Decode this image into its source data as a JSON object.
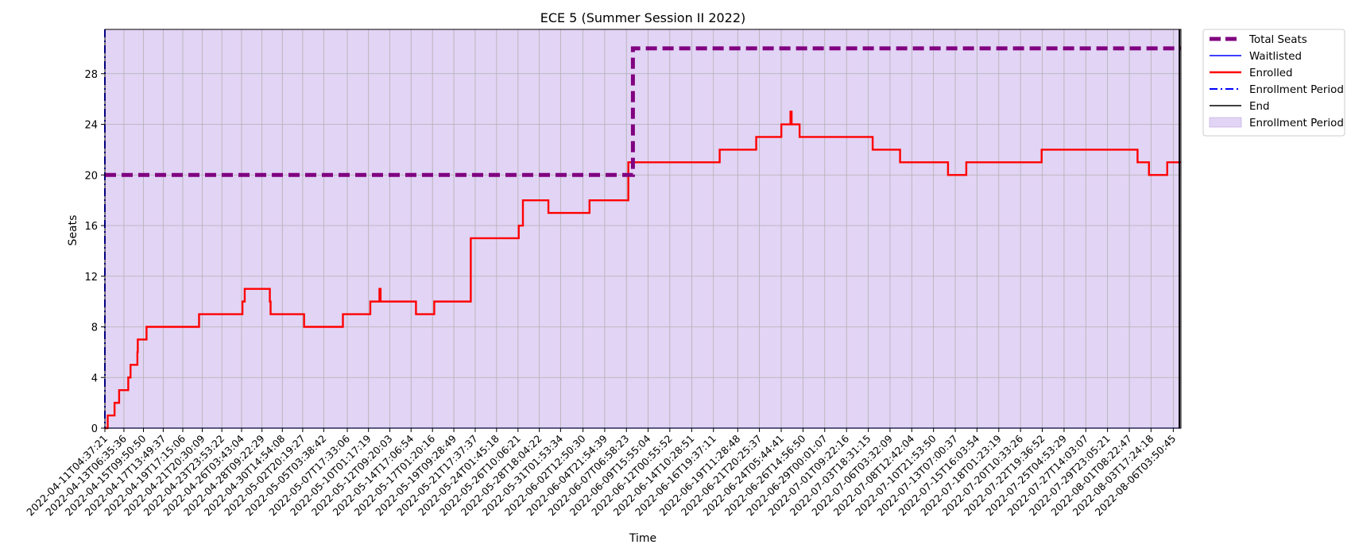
{
  "chart_data": {
    "type": "line",
    "title": "ECE 5 (Summer Session II 2022)",
    "xlabel": "Time",
    "ylabel": "Seats",
    "ylim": [
      0,
      31.5
    ],
    "yticks": [
      0,
      4,
      8,
      12,
      16,
      20,
      24,
      28
    ],
    "grid": true,
    "legend_position": "outside-top-right",
    "x_start": "2022-04-11T04:37:21",
    "x_end": "2022-08-07T00:00:00",
    "x_ticks": [
      "2022-04-11T04:37:21",
      "2022-04-13T06:35:36",
      "2022-04-15T09:50:50",
      "2022-04-17T13:49:37",
      "2022-04-19T17:15:06",
      "2022-04-21T20:30:09",
      "2022-04-23T23:53:22",
      "2022-04-26T03:43:04",
      "2022-04-28T09:22:29",
      "2022-04-30T14:54:08",
      "2022-05-02T20:19:27",
      "2022-05-05T03:38:42",
      "2022-05-07T17:33:06",
      "2022-05-10T01:17:19",
      "2022-05-12T09:20:03",
      "2022-05-14T17:06:54",
      "2022-05-17T01:20:16",
      "2022-05-19T09:28:49",
      "2022-05-21T17:37:37",
      "2022-05-24T01:45:18",
      "2022-05-26T10:06:21",
      "2022-05-28T18:04:22",
      "2022-05-31T01:53:34",
      "2022-06-02T12:50:30",
      "2022-06-04T21:54:39",
      "2022-06-07T06:58:23",
      "2022-06-09T15:55:04",
      "2022-06-12T00:55:52",
      "2022-06-14T10:28:51",
      "2022-06-16T19:37:11",
      "2022-06-19T11:28:48",
      "2022-06-21T20:25:37",
      "2022-06-24T05:44:41",
      "2022-06-26T14:56:50",
      "2022-06-29T00:01:07",
      "2022-07-01T09:22:16",
      "2022-07-03T18:31:15",
      "2022-07-06T03:32:09",
      "2022-07-08T12:42:04",
      "2022-07-10T21:53:50",
      "2022-07-13T07:00:37",
      "2022-07-15T16:03:54",
      "2022-07-18T01:23:19",
      "2022-07-20T10:33:26",
      "2022-07-22T19:36:52",
      "2022-07-25T04:53:29",
      "2022-07-27T14:03:07",
      "2022-07-29T23:05:21",
      "2022-08-01T08:22:47",
      "2022-08-03T17:24:18",
      "2022-08-06T03:50:45"
    ],
    "series": [
      {
        "name": "Total Seats",
        "color": "#800080",
        "style": "dashed-thick",
        "points": [
          [
            "2022-04-11T04:37:21",
            20
          ],
          [
            "2022-06-08T00:00:00",
            20
          ],
          [
            "2022-06-08T00:00:00",
            30
          ],
          [
            "2022-08-07T00:00:00",
            30
          ]
        ]
      },
      {
        "name": "Waitlisted",
        "color": "#0000ff",
        "style": "solid-thin",
        "points": [
          [
            "2022-04-11T04:37:21",
            0
          ],
          [
            "2022-08-07T00:00:00",
            0
          ]
        ]
      },
      {
        "name": "Enrolled",
        "color": "#ff0000",
        "style": "step",
        "points": [
          [
            "2022-04-11T04:37:21",
            0
          ],
          [
            "2022-04-11T12:00:00",
            0
          ],
          [
            "2022-04-11T12:00:00",
            1
          ],
          [
            "2022-04-12T06:00:00",
            1
          ],
          [
            "2022-04-12T06:00:00",
            2
          ],
          [
            "2022-04-12T18:00:00",
            2
          ],
          [
            "2022-04-12T18:00:00",
            3
          ],
          [
            "2022-04-13T18:00:00",
            3
          ],
          [
            "2022-04-13T18:00:00",
            4
          ],
          [
            "2022-04-14T00:00:00",
            4
          ],
          [
            "2022-04-14T00:00:00",
            5
          ],
          [
            "2022-04-14T18:00:00",
            5
          ],
          [
            "2022-04-14T18:00:00",
            6
          ],
          [
            "2022-04-14T19:00:00",
            6
          ],
          [
            "2022-04-14T19:00:00",
            7
          ],
          [
            "2022-04-15T18:00:00",
            7
          ],
          [
            "2022-04-15T18:00:00",
            8
          ],
          [
            "2022-04-21T12:00:00",
            8
          ],
          [
            "2022-04-21T12:00:00",
            9
          ],
          [
            "2022-04-26T06:00:00",
            9
          ],
          [
            "2022-04-26T06:00:00",
            10
          ],
          [
            "2022-04-26T12:00:00",
            10
          ],
          [
            "2022-04-26T12:00:00",
            11
          ],
          [
            "2022-04-29T06:00:00",
            11
          ],
          [
            "2022-04-29T06:00:00",
            10
          ],
          [
            "2022-04-29T08:00:00",
            10
          ],
          [
            "2022-04-29T08:00:00",
            9
          ],
          [
            "2022-05-03T00:00:00",
            9
          ],
          [
            "2022-05-03T00:00:00",
            8
          ],
          [
            "2022-05-07T06:00:00",
            8
          ],
          [
            "2022-05-07T06:00:00",
            9
          ],
          [
            "2022-05-10T06:00:00",
            9
          ],
          [
            "2022-05-10T06:00:00",
            10
          ],
          [
            "2022-05-11T06:00:00",
            10
          ],
          [
            "2022-05-11T06:00:00",
            11
          ],
          [
            "2022-05-11T09:00:00",
            11
          ],
          [
            "2022-05-11T09:00:00",
            10
          ],
          [
            "2022-05-15T06:00:00",
            10
          ],
          [
            "2022-05-15T06:00:00",
            9
          ],
          [
            "2022-05-17T06:00:00",
            9
          ],
          [
            "2022-05-17T06:00:00",
            10
          ],
          [
            "2022-05-21T06:00:00",
            10
          ],
          [
            "2022-05-21T06:00:00",
            15
          ],
          [
            "2022-05-26T12:00:00",
            15
          ],
          [
            "2022-05-26T12:00:00",
            16
          ],
          [
            "2022-05-26T23:00:00",
            16
          ],
          [
            "2022-05-26T23:00:00",
            18
          ],
          [
            "2022-05-29T18:00:00",
            18
          ],
          [
            "2022-05-29T18:00:00",
            17
          ],
          [
            "2022-06-03T06:00:00",
            17
          ],
          [
            "2022-06-03T06:00:00",
            18
          ],
          [
            "2022-06-07T12:00:00",
            18
          ],
          [
            "2022-06-07T12:00:00",
            21
          ],
          [
            "2022-06-17T12:00:00",
            21
          ],
          [
            "2022-06-17T12:00:00",
            22
          ],
          [
            "2022-06-21T12:00:00",
            22
          ],
          [
            "2022-06-21T12:00:00",
            23
          ],
          [
            "2022-06-24T06:00:00",
            23
          ],
          [
            "2022-06-24T06:00:00",
            24
          ],
          [
            "2022-06-25T06:00:00",
            24
          ],
          [
            "2022-06-25T06:00:00",
            25
          ],
          [
            "2022-06-25T09:00:00",
            25
          ],
          [
            "2022-06-25T09:00:00",
            24
          ],
          [
            "2022-06-26T06:00:00",
            24
          ],
          [
            "2022-06-26T06:00:00",
            23
          ],
          [
            "2022-07-04T06:00:00",
            23
          ],
          [
            "2022-07-04T06:00:00",
            22
          ],
          [
            "2022-07-07T06:00:00",
            22
          ],
          [
            "2022-07-07T06:00:00",
            21
          ],
          [
            "2022-07-12T12:00:00",
            21
          ],
          [
            "2022-07-12T12:00:00",
            20
          ],
          [
            "2022-07-14T12:00:00",
            20
          ],
          [
            "2022-07-14T12:00:00",
            21
          ],
          [
            "2022-07-22T18:00:00",
            21
          ],
          [
            "2022-07-22T18:00:00",
            22
          ],
          [
            "2022-08-02T06:00:00",
            22
          ],
          [
            "2022-08-02T06:00:00",
            21
          ],
          [
            "2022-08-03T12:00:00",
            21
          ],
          [
            "2022-08-03T12:00:00",
            20
          ],
          [
            "2022-08-05T12:00:00",
            20
          ],
          [
            "2022-08-05T12:00:00",
            21
          ],
          [
            "2022-08-07T00:00:00",
            21
          ]
        ]
      }
    ],
    "enrollment_period": {
      "label": "Enrollment Period",
      "fill_color": "#e2d4f5",
      "line_color": "#0000ff",
      "start": "2022-04-11T04:37:21",
      "end": "2022-08-07T00:00:00"
    },
    "end_marker": {
      "label": "End",
      "color": "#000000",
      "at": "2022-08-06T20:00:00"
    },
    "legend": [
      {
        "label": "Total Seats",
        "kind": "thick-dashed",
        "color": "#800080"
      },
      {
        "label": "Waitlisted",
        "kind": "line",
        "color": "#0000ff"
      },
      {
        "label": "Enrolled",
        "kind": "line-bold",
        "color": "#ff0000"
      },
      {
        "label": "Enrollment Period",
        "kind": "dashdot",
        "color": "#0000ff"
      },
      {
        "label": "End",
        "kind": "line",
        "color": "#000000"
      },
      {
        "label": "Enrollment Period",
        "kind": "patch",
        "color": "#e2d4f5"
      }
    ]
  }
}
